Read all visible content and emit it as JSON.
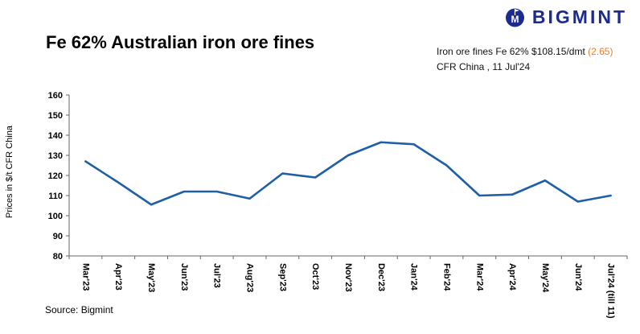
{
  "logo": {
    "text": "BIGMINT",
    "icon": "bigmint-circle-icon",
    "color": "#1d2b8f"
  },
  "title": "Fe 62% Australian iron ore fines",
  "subtitle": {
    "line1_prefix": "Iron ore fines Fe 62% $108.15/dmt ",
    "line1_highlight": "(2.65)",
    "line2": "CFR China , 11 Jul'24",
    "highlight_color": "#e87d2a"
  },
  "source": "Source: Bigmint",
  "chart_data": {
    "type": "line",
    "title": "Fe 62% Australian iron ore fines",
    "categories": [
      "Mar'23",
      "Apr'23",
      "May'23",
      "Jun'23",
      "Jul'23",
      "Aug'23",
      "Sep'23",
      "Oct'23",
      "Nov'23",
      "Dec'23",
      "Jan'24",
      "Feb'24",
      "Mar'24",
      "Apr'24",
      "May'24",
      "Jun'24",
      "Jul'24 (till 11)"
    ],
    "values": [
      127,
      116.5,
      105.5,
      112,
      112,
      108.5,
      121,
      119,
      130,
      136.5,
      135.5,
      125,
      110,
      110.5,
      117.5,
      107,
      110
    ],
    "xlabel": "",
    "ylabel": "Prices in $/t CFR China",
    "ylim": [
      80,
      160
    ],
    "ytick_step": 10,
    "line_color": "#1f5fa8",
    "axis_color": "#666666",
    "grid": false,
    "legend": false
  }
}
